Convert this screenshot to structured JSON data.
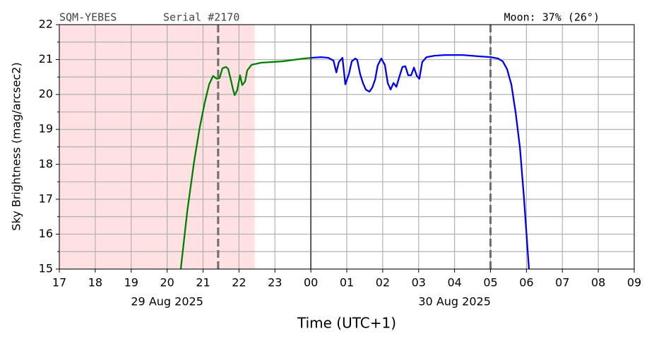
{
  "chart_data": {
    "type": "line",
    "header_left": "SQM-YEBES",
    "header_mid": "Serial #2170",
    "header_right": "Moon: 37% (26°)",
    "ylabel": "Sky Brightness (mag/arcsec2)",
    "xlabel": "Time (UTC+1)",
    "xlim": [
      17,
      33
    ],
    "ylim": [
      15,
      22
    ],
    "xticks": [
      17,
      18,
      19,
      20,
      21,
      22,
      23,
      {
        "value": 24,
        "label": "00"
      },
      {
        "value": 25,
        "label": "01"
      },
      {
        "value": 26,
        "label": "02"
      },
      {
        "value": 27,
        "label": "03"
      },
      {
        "value": 28,
        "label": "04"
      },
      {
        "value": 29,
        "label": "05"
      },
      {
        "value": 30,
        "label": "06"
      },
      {
        "value": 31,
        "label": "07"
      },
      {
        "value": 32,
        "label": "08"
      },
      {
        "value": 33,
        "label": "09"
      }
    ],
    "date_labels": [
      {
        "value": 20,
        "label": "29 Aug 2025"
      },
      {
        "value": 28,
        "label": "30 Aug 2025"
      }
    ],
    "yticks": [
      15,
      16,
      17,
      18,
      19,
      20,
      21,
      22
    ],
    "yminorticks": [
      15.5,
      16.5,
      17.5,
      18.5,
      19.5,
      20.5,
      21.5
    ],
    "grid": true,
    "shade": {
      "range": [
        17,
        22.44
      ],
      "color": "#ffe1e4"
    },
    "vlines": [
      {
        "x": 21.42,
        "style": "dashed",
        "color": "#6e6e6e"
      },
      {
        "x": 29,
        "style": "dashed",
        "color": "#6e6e6e"
      },
      {
        "x": 24,
        "style": "solid",
        "color": "#555555"
      }
    ],
    "series": [
      {
        "color": "#008000",
        "x": [
          20.38,
          20.56,
          20.75,
          20.91,
          21.05,
          21.17,
          21.28,
          21.38,
          21.46,
          21.54,
          21.64,
          21.7,
          21.78,
          21.84,
          21.88,
          21.95,
          22.03,
          22.09,
          22.17,
          22.23,
          22.35,
          22.62,
          23.21,
          23.8,
          24.0
        ],
        "values": [
          15.0,
          16.65,
          18.07,
          19.07,
          19.78,
          20.29,
          20.53,
          20.45,
          20.47,
          20.75,
          20.79,
          20.73,
          20.39,
          20.12,
          19.98,
          20.12,
          20.55,
          20.27,
          20.37,
          20.69,
          20.85,
          20.91,
          20.95,
          21.03,
          21.05
        ]
      },
      {
        "color": "#0000ee",
        "x": [
          24.0,
          24.29,
          24.49,
          24.63,
          24.71,
          24.78,
          24.88,
          24.96,
          25.06,
          25.14,
          25.24,
          25.29,
          25.37,
          25.45,
          25.53,
          25.63,
          25.71,
          25.79,
          25.86,
          25.96,
          26.06,
          26.14,
          26.22,
          26.3,
          26.38,
          26.47,
          26.55,
          26.63,
          26.71,
          26.79,
          26.87,
          26.95,
          27.02,
          27.1,
          27.22,
          27.44,
          27.73,
          28.22,
          28.72,
          29.01,
          29.21,
          29.34,
          29.46,
          29.58,
          29.7,
          29.82,
          29.93,
          30.07
        ],
        "values": [
          21.05,
          21.07,
          21.05,
          20.97,
          20.63,
          20.93,
          21.05,
          20.29,
          20.59,
          20.95,
          21.03,
          20.99,
          20.59,
          20.33,
          20.14,
          20.08,
          20.2,
          20.43,
          20.83,
          21.03,
          20.85,
          20.33,
          20.14,
          20.33,
          20.22,
          20.53,
          20.79,
          20.81,
          20.55,
          20.55,
          20.77,
          20.53,
          20.45,
          20.93,
          21.07,
          21.11,
          21.13,
          21.13,
          21.09,
          21.07,
          21.03,
          20.95,
          20.73,
          20.29,
          19.48,
          18.47,
          17.06,
          15.0
        ]
      }
    ]
  }
}
